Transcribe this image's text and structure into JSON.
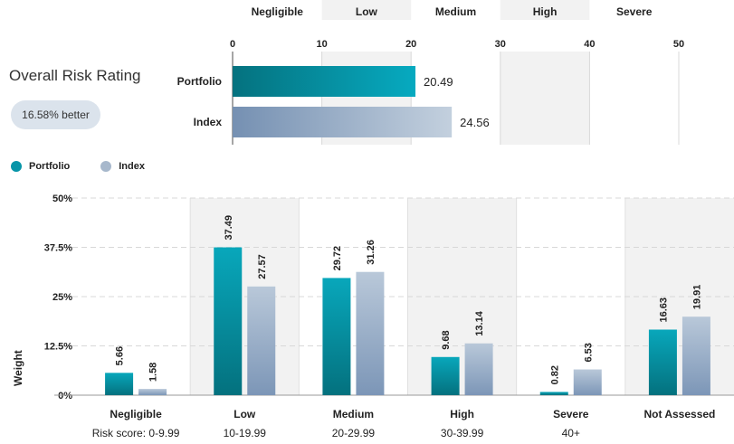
{
  "colors": {
    "portfolio": "#0795a8",
    "index": "#8ea6c2",
    "band_shade": "#f2f2f2",
    "grid": "#d8d8d8",
    "badge_bg": "#dbe3ec"
  },
  "header": {
    "overall_title": "Overall Risk Rating",
    "badge_text": "16.58% better"
  },
  "legend": {
    "portfolio": "Portfolio",
    "index": "Index"
  },
  "chart_data": [
    {
      "type": "bar",
      "orientation": "horizontal",
      "band_labels": [
        "Negligible",
        "Low",
        "Medium",
        "High",
        "Severe"
      ],
      "x_ticks": [
        0,
        10,
        20,
        30,
        40,
        50
      ],
      "xlim": [
        0,
        50
      ],
      "categories": [
        "Portfolio",
        "Index"
      ],
      "values": [
        20.49,
        24.56
      ],
      "value_labels": [
        "20.49",
        "24.56"
      ],
      "shaded_bands": [
        "Low",
        "High"
      ]
    },
    {
      "type": "bar",
      "ylabel": "Weight",
      "ylim": [
        0,
        50
      ],
      "y_ticks": [
        "0%",
        "12.5%",
        "25%",
        "37.5%",
        "50%"
      ],
      "y_tick_values": [
        0,
        12.5,
        25,
        37.5,
        50
      ],
      "categories": [
        "Negligible",
        "Low",
        "Medium",
        "High",
        "Severe",
        "Not Assessed"
      ],
      "sublabels": [
        "Risk score: 0-9.99",
        "10-19.99",
        "20-29.99",
        "30-39.99",
        "40+",
        ""
      ],
      "shaded_categories": [
        "Low",
        "High",
        "Not Assessed"
      ],
      "series": [
        {
          "name": "Portfolio",
          "values": [
            5.66,
            37.49,
            29.72,
            9.68,
            0.82,
            16.63
          ]
        },
        {
          "name": "Index",
          "values": [
            1.58,
            27.57,
            31.26,
            13.14,
            6.53,
            19.91
          ]
        }
      ]
    }
  ]
}
